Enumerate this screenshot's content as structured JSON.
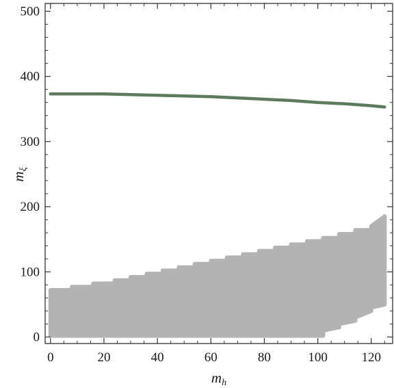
{
  "chart_data": {
    "type": "area",
    "title": "",
    "xlabel": "m",
    "xlabel_sub": "h",
    "ylabel": "m",
    "ylabel_sub": "ξ",
    "xlim": [
      -2,
      128
    ],
    "ylim": [
      -10,
      512
    ],
    "x_ticks": [
      0,
      20,
      40,
      60,
      80,
      100,
      120
    ],
    "y_ticks": [
      0,
      100,
      200,
      300,
      400,
      500
    ],
    "grid": false,
    "legend": "none",
    "colors": {
      "region": "#b3b3b3",
      "curve": "#5c7a5c",
      "frame": "#333333"
    },
    "series": [
      {
        "kind": "line",
        "x": [
          0,
          10,
          20,
          30,
          40,
          50,
          60,
          70,
          80,
          90,
          100,
          110,
          120,
          125
        ],
        "y": [
          373,
          373,
          373,
          372,
          371,
          370,
          369,
          367,
          365,
          363,
          360,
          358,
          355,
          353
        ]
      },
      {
        "kind": "band",
        "x": [
          0,
          8,
          8,
          16,
          16,
          24,
          24,
          30,
          30,
          36,
          36,
          42,
          42,
          48,
          48,
          54,
          54,
          60,
          60,
          66,
          66,
          72,
          72,
          78,
          78,
          84,
          84,
          90,
          90,
          96,
          96,
          102,
          102,
          108,
          108,
          114,
          114,
          120,
          120,
          125
        ],
        "upper": [
          72,
          72,
          77,
          77,
          82,
          82,
          87,
          87,
          92,
          92,
          97,
          97,
          102,
          102,
          107,
          107,
          112,
          112,
          117,
          117,
          122,
          122,
          127,
          127,
          132,
          132,
          137,
          137,
          142,
          142,
          147,
          147,
          152,
          152,
          158,
          158,
          164,
          164,
          170,
          185
        ],
        "lower": [
          2,
          2,
          2,
          2,
          2,
          2,
          2,
          2,
          2,
          2,
          2,
          2,
          2,
          2,
          2,
          2,
          2,
          2,
          2,
          2,
          2,
          2,
          2,
          2,
          2,
          2,
          2,
          2,
          2,
          2,
          2,
          2,
          10,
          15,
          20,
          25,
          30,
          40,
          45,
          50
        ]
      }
    ]
  }
}
